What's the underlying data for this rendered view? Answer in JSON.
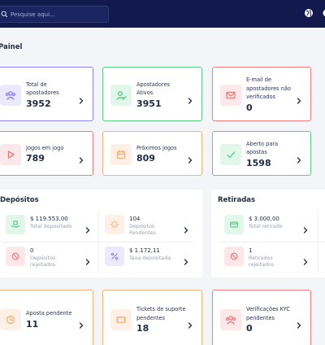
{
  "header": {
    "search_placeholder": "Pesquise aqui...",
    "icons": [
      "search-icon",
      "globe-icon",
      "gear-icon"
    ]
  },
  "page": {
    "title": "Painel"
  },
  "cards": [
    {
      "label": "Total de apostadores",
      "value": "3952",
      "accent": "#8f86f5",
      "icon": "users-icon"
    },
    {
      "label": "Apostadores Ativos",
      "value": "3951",
      "accent": "#5ccf8b",
      "icon": "user-check-icon"
    },
    {
      "label": "E-mail de apostadores não verificados",
      "value": "0",
      "accent": "#f07e7e",
      "icon": "envelope-icon"
    },
    {
      "label": "Jogos em jogo",
      "value": "789",
      "accent": "#f07e7e",
      "icon": "play-icon"
    },
    {
      "label": "Próximos jogos",
      "value": "809",
      "accent": "#f5b37a",
      "icon": "calendar-icon"
    },
    {
      "label": "Aberto para apostas",
      "value": "1598",
      "accent": "#5ccf8b",
      "icon": "check-icon"
    },
    {
      "label": "Aposta pendente",
      "value": "11",
      "accent": "#f5b37a",
      "icon": "clock-icon"
    },
    {
      "label": "Tickets de suporte pendentes",
      "value": "18",
      "accent": "#f5b37a",
      "icon": "ticket-icon"
    },
    {
      "label": "Verificações KYC pendentes",
      "value": "0",
      "accent": "#f07e7e",
      "icon": "users-icon"
    }
  ],
  "deposits": {
    "title": "Depósitos",
    "items": [
      {
        "value": "$ 119.553,00",
        "label": "Total depositado",
        "icon": "hand-money-icon",
        "color": "#5ccf8b"
      },
      {
        "value": "104",
        "label": "Depósitos Pendentes",
        "icon": "spinner-icon",
        "color": "#f5b37a"
      },
      {
        "value": "0",
        "label": "Depósitos rejeitados",
        "icon": "ban-icon",
        "color": "#f07e7e"
      },
      {
        "value": "$ 1.172,11",
        "label": "Taxa depositada",
        "icon": "percent-icon",
        "color": "#8f86f5"
      }
    ]
  },
  "withdrawals": {
    "title": "Retiradas",
    "items": [
      {
        "value": "$ 3.000,00",
        "label": "Total retirado",
        "icon": "wallet-icon",
        "color": "#5ccf8b"
      },
      {
        "value": "1",
        "label": "Retirados rejeitados",
        "icon": "ban-icon",
        "color": "#f07e7e"
      }
    ]
  }
}
